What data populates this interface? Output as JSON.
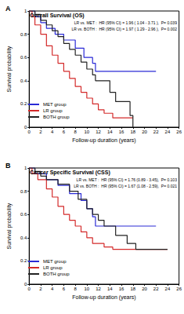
{
  "chart_data": [
    {
      "type": "line",
      "panel_label": "A",
      "title": "Overall Survival (OS)",
      "xlabel": "Follow-up duration (years)",
      "ylabel": "Survival probability",
      "xlim": [
        0,
        26
      ],
      "xticks": [
        0,
        2,
        4,
        6,
        8,
        10,
        12,
        14,
        16,
        18,
        20,
        22,
        24,
        26
      ],
      "ylim": [
        0,
        1
      ],
      "yticks": [
        0,
        0.2,
        0.4,
        0.6,
        0.8,
        1
      ],
      "grid": false,
      "legend": "lower left",
      "line_style": "step",
      "annotations": [
        "LR vs. MET :  HR (95% CI) = 1.96 ( 1.04 - 3.71 ),  P= 0.039",
        "LR vs. BOTH :  HR (95% CI) = 1.97 ( 1.29 - 2.96 ),  P= 0.002"
      ],
      "series": [
        {
          "name": "MET group",
          "color": "#2a2ad6",
          "x": [
            0,
            1,
            2,
            3,
            4.5,
            6,
            8,
            9.5,
            11,
            11.5,
            22
          ],
          "values": [
            1,
            0.95,
            0.9,
            0.85,
            0.8,
            0.75,
            0.68,
            0.6,
            0.55,
            0.48,
            0.48
          ]
        },
        {
          "name": "LR group",
          "color": "#d42a2a",
          "x": [
            0,
            0.5,
            1,
            2,
            3,
            4,
            5,
            6,
            7,
            8,
            9,
            10,
            11,
            12,
            13,
            14.5,
            18
          ],
          "values": [
            1,
            0.95,
            0.88,
            0.8,
            0.7,
            0.62,
            0.55,
            0.48,
            0.42,
            0.35,
            0.3,
            0.25,
            0.2,
            0.15,
            0.12,
            0.08,
            0.08
          ]
        },
        {
          "name": "BOTH group",
          "color": "#222222",
          "x": [
            0,
            1,
            2,
            3,
            4,
            5,
            6,
            7,
            8,
            9,
            10,
            11,
            11.5,
            14,
            15,
            17.5,
            18
          ],
          "values": [
            1,
            0.97,
            0.92,
            0.88,
            0.83,
            0.78,
            0.72,
            0.67,
            0.62,
            0.56,
            0.5,
            0.45,
            0.4,
            0.3,
            0.22,
            0.1,
            0
          ]
        }
      ]
    },
    {
      "type": "line",
      "panel_label": "B",
      "title": "Cancer Specific Survival (CSS)",
      "xlabel": "Follow-up duration (years)",
      "ylabel": "Survival probability",
      "xlim": [
        0,
        26
      ],
      "xticks": [
        0,
        2,
        4,
        6,
        8,
        10,
        12,
        14,
        16,
        18,
        20,
        22,
        24,
        26
      ],
      "ylim": [
        0,
        1
      ],
      "yticks": [
        0,
        0.2,
        0.4,
        0.6,
        0.8,
        1
      ],
      "grid": false,
      "legend": "lower left",
      "line_style": "step",
      "annotations": [
        "LR vs. MET :  HR (95% CI) = 1.76 (0.89 - 3.45),  P= 0.103",
        "LR vs. BOTH :  HR (95% CI) = 1.67 (1.08 - 2.59),  P= 0.021"
      ],
      "series": [
        {
          "name": "MET group",
          "color": "#2a2ad6",
          "x": [
            0,
            1,
            3,
            5,
            7,
            9,
            10,
            11,
            11.5,
            22
          ],
          "values": [
            1,
            0.95,
            0.9,
            0.85,
            0.78,
            0.72,
            0.65,
            0.58,
            0.5,
            0.5
          ]
        },
        {
          "name": "LR group",
          "color": "#d42a2a",
          "x": [
            0,
            0.5,
            1.5,
            3,
            4,
            5,
            6,
            7,
            8,
            9,
            10,
            11,
            13,
            14.5,
            24
          ],
          "values": [
            1,
            0.95,
            0.9,
            0.82,
            0.75,
            0.67,
            0.6,
            0.55,
            0.5,
            0.45,
            0.4,
            0.35,
            0.32,
            0.3,
            0.3
          ]
        },
        {
          "name": "BOTH group",
          "color": "#222222",
          "x": [
            0,
            1,
            2,
            3,
            5,
            7,
            8.5,
            10,
            11,
            12,
            13,
            15,
            17,
            18.5,
            24
          ],
          "values": [
            1,
            0.97,
            0.93,
            0.9,
            0.86,
            0.8,
            0.73,
            0.65,
            0.6,
            0.55,
            0.5,
            0.42,
            0.35,
            0.3,
            0.3
          ]
        }
      ]
    }
  ]
}
